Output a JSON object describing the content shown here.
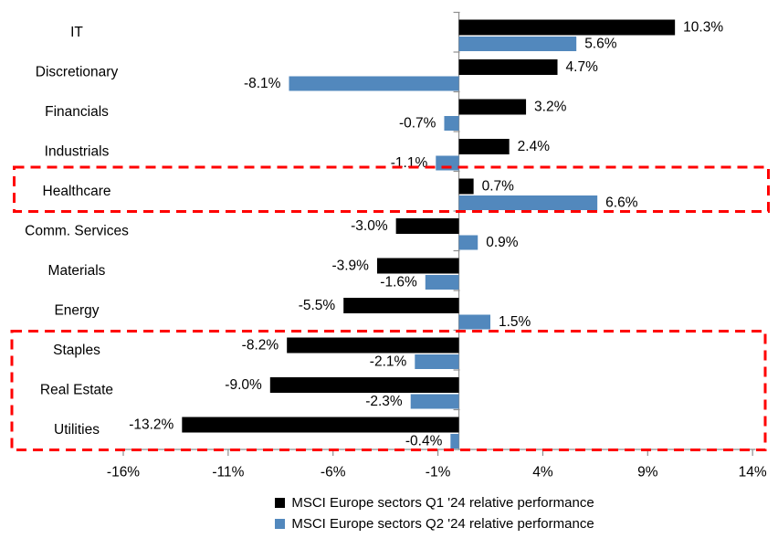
{
  "chart_data": {
    "type": "bar",
    "orientation": "horizontal",
    "title": "",
    "categories": [
      "IT",
      "Discretionary",
      "Financials",
      "Industrials",
      "Healthcare",
      "Comm. Services",
      "Materials",
      "Energy",
      "Staples",
      "Real Estate",
      "Utilities"
    ],
    "series": [
      {
        "name": "MSCI Europe sectors Q1 '24 relative performance",
        "color": "#000000",
        "values": [
          10.3,
          4.7,
          3.2,
          2.4,
          0.7,
          -3.0,
          -3.9,
          -5.5,
          -8.2,
          -9.0,
          -13.2
        ],
        "data_labels": [
          "10.3%",
          "4.7%",
          "3.2%",
          "2.4%",
          "0.7%",
          "-3.0%",
          "-3.9%",
          "-5.5%",
          "-8.2%",
          "-9.0%",
          "-13.2%"
        ]
      },
      {
        "name": "MSCI Europe sectors Q2 '24 relative performance",
        "color": "#5288BD",
        "values": [
          5.6,
          -8.1,
          -0.7,
          -1.1,
          6.6,
          0.9,
          -1.6,
          1.5,
          -2.1,
          -2.3,
          -0.4
        ],
        "data_labels": [
          "5.6%",
          "-8.1%",
          "-0.7%",
          "-1.1%",
          "6.6%",
          "0.9%",
          "-1.6%",
          "1.5%",
          "-2.1%",
          "-2.3%",
          "-0.4%"
        ]
      }
    ],
    "x_axis": {
      "min": -16,
      "max": 14.15,
      "ticks": [
        -16,
        -11,
        -6,
        -1,
        4,
        9,
        14
      ],
      "tick_labels": [
        "-16%",
        "-11%",
        "-6%",
        "-1%",
        "4%",
        "9%",
        "14%"
      ],
      "grid": false
    },
    "axis_color": "#8E8E8E",
    "text_color": "#000000",
    "legend_position": "bottom-center",
    "highlight_boxes": [
      {
        "categories": [
          "Healthcare"
        ],
        "color": "#FF0000",
        "style": "dashed"
      },
      {
        "categories": [
          "Staples",
          "Real Estate",
          "Utilities"
        ],
        "color": "#FF0000",
        "style": "dashed"
      }
    ]
  }
}
